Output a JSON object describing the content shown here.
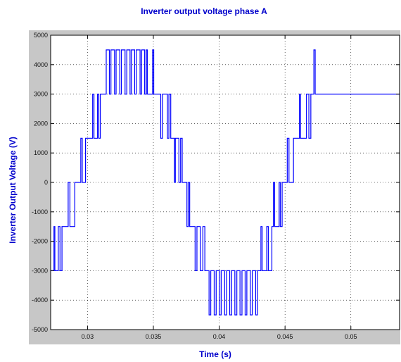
{
  "chart_data": {
    "type": "line",
    "title": "Inverter output voltage phase A",
    "xlabel": "Time (s)",
    "ylabel": "Inverter Output Voltage (V)",
    "xlim": [
      0.0272,
      0.0537
    ],
    "ylim": [
      -5000,
      5000
    ],
    "xticks": [
      0.03,
      0.035,
      0.04,
      0.045,
      0.05
    ],
    "xtick_labels": [
      "0.03",
      "0.035",
      "0.04",
      "0.045",
      "0.05"
    ],
    "yticks": [
      5000,
      4000,
      3000,
      2000,
      1000,
      0,
      -1000,
      -2000,
      -3000,
      -4000,
      -5000
    ],
    "ytick_labels": [
      "5000",
      "4000",
      "3000",
      "2000",
      "1000",
      "0",
      "-1000",
      "-2000",
      "-3000",
      "-4000",
      "-5000"
    ],
    "grid": true,
    "grid_style": "dotted",
    "series": [
      {
        "color": "#0000ff",
        "points": [
          [
            0.0272,
            -3000
          ],
          [
            0.02745,
            -3000
          ],
          [
            0.02745,
            -1500
          ],
          [
            0.02752,
            -1500
          ],
          [
            0.02752,
            -3000
          ],
          [
            0.02778,
            -3000
          ],
          [
            0.02778,
            -1500
          ],
          [
            0.02791,
            -1500
          ],
          [
            0.02791,
            -3000
          ],
          [
            0.02806,
            -3000
          ],
          [
            0.02806,
            -1500
          ],
          [
            0.02853,
            -1500
          ],
          [
            0.02853,
            0
          ],
          [
            0.02866,
            0
          ],
          [
            0.02866,
            -1500
          ],
          [
            0.02903,
            -1500
          ],
          [
            0.02903,
            0
          ],
          [
            0.02949,
            0
          ],
          [
            0.02949,
            1500
          ],
          [
            0.0296,
            1500
          ],
          [
            0.0296,
            0
          ],
          [
            0.02985,
            0
          ],
          [
            0.02985,
            1500
          ],
          [
            0.03039,
            1500
          ],
          [
            0.03039,
            3000
          ],
          [
            0.03049,
            3000
          ],
          [
            0.03049,
            1500
          ],
          [
            0.03076,
            1500
          ],
          [
            0.03076,
            3000
          ],
          [
            0.03086,
            3000
          ],
          [
            0.03086,
            1500
          ],
          [
            0.03097,
            1500
          ],
          [
            0.03097,
            3000
          ],
          [
            0.03142,
            3000
          ],
          [
            0.03142,
            4500
          ],
          [
            0.03166,
            4500
          ],
          [
            0.03166,
            3000
          ],
          [
            0.03178,
            3000
          ],
          [
            0.03178,
            4500
          ],
          [
            0.03205,
            4500
          ],
          [
            0.03205,
            3000
          ],
          [
            0.03217,
            3000
          ],
          [
            0.03217,
            4500
          ],
          [
            0.03245,
            4500
          ],
          [
            0.03245,
            3000
          ],
          [
            0.03257,
            3000
          ],
          [
            0.03257,
            4500
          ],
          [
            0.03285,
            4500
          ],
          [
            0.03285,
            3000
          ],
          [
            0.03298,
            3000
          ],
          [
            0.03298,
            4500
          ],
          [
            0.03323,
            4500
          ],
          [
            0.03323,
            3000
          ],
          [
            0.03333,
            3000
          ],
          [
            0.03333,
            4500
          ],
          [
            0.03358,
            4500
          ],
          [
            0.03358,
            3000
          ],
          [
            0.0337,
            3000
          ],
          [
            0.0337,
            4500
          ],
          [
            0.03399,
            4500
          ],
          [
            0.03399,
            3000
          ],
          [
            0.03411,
            3000
          ],
          [
            0.03411,
            4500
          ],
          [
            0.03434,
            4500
          ],
          [
            0.03434,
            3000
          ],
          [
            0.03446,
            3000
          ],
          [
            0.03446,
            4500
          ],
          [
            0.03454,
            4500
          ],
          [
            0.03454,
            3000
          ],
          [
            0.03494,
            3000
          ],
          [
            0.03494,
            4500
          ],
          [
            0.03503,
            4500
          ],
          [
            0.03503,
            3000
          ],
          [
            0.03556,
            3000
          ],
          [
            0.03556,
            1500
          ],
          [
            0.03569,
            1500
          ],
          [
            0.03569,
            3000
          ],
          [
            0.03607,
            3000
          ],
          [
            0.03607,
            1500
          ],
          [
            0.03618,
            1500
          ],
          [
            0.03618,
            3000
          ],
          [
            0.03632,
            3000
          ],
          [
            0.03632,
            1500
          ],
          [
            0.0366,
            1500
          ],
          [
            0.0366,
            0
          ],
          [
            0.03667,
            0
          ],
          [
            0.03667,
            1500
          ],
          [
            0.03694,
            1500
          ],
          [
            0.03694,
            0
          ],
          [
            0.03707,
            0
          ],
          [
            0.03707,
            1500
          ],
          [
            0.03719,
            1500
          ],
          [
            0.03719,
            0
          ],
          [
            0.03755,
            0
          ],
          [
            0.03755,
            -1500
          ],
          [
            0.03766,
            -1500
          ],
          [
            0.03766,
            0
          ],
          [
            0.03776,
            0
          ],
          [
            0.03776,
            -1500
          ],
          [
            0.03817,
            -1500
          ],
          [
            0.03817,
            -3000
          ],
          [
            0.03831,
            -3000
          ],
          [
            0.03831,
            -1500
          ],
          [
            0.03856,
            -1500
          ],
          [
            0.03856,
            -3000
          ],
          [
            0.03876,
            -3000
          ],
          [
            0.03876,
            -1500
          ],
          [
            0.03891,
            -1500
          ],
          [
            0.03891,
            -3000
          ],
          [
            0.03923,
            -3000
          ],
          [
            0.03923,
            -4500
          ],
          [
            0.03936,
            -4500
          ],
          [
            0.03936,
            -3000
          ],
          [
            0.03962,
            -3000
          ],
          [
            0.03962,
            -4500
          ],
          [
            0.03977,
            -4500
          ],
          [
            0.03977,
            -3000
          ],
          [
            0.04001,
            -3000
          ],
          [
            0.04001,
            -4500
          ],
          [
            0.04015,
            -4500
          ],
          [
            0.04015,
            -3000
          ],
          [
            0.04041,
            -3000
          ],
          [
            0.04041,
            -4500
          ],
          [
            0.04056,
            -4500
          ],
          [
            0.04056,
            -3000
          ],
          [
            0.0408,
            -3000
          ],
          [
            0.0408,
            -4500
          ],
          [
            0.04095,
            -4500
          ],
          [
            0.04095,
            -3000
          ],
          [
            0.04119,
            -3000
          ],
          [
            0.04119,
            -4500
          ],
          [
            0.04134,
            -4500
          ],
          [
            0.04134,
            -3000
          ],
          [
            0.04158,
            -3000
          ],
          [
            0.04158,
            -4500
          ],
          [
            0.04173,
            -4500
          ],
          [
            0.04173,
            -3000
          ],
          [
            0.04197,
            -3000
          ],
          [
            0.04197,
            -4500
          ],
          [
            0.0421,
            -4500
          ],
          [
            0.0421,
            -3000
          ],
          [
            0.04236,
            -3000
          ],
          [
            0.04236,
            -4500
          ],
          [
            0.04251,
            -4500
          ],
          [
            0.04251,
            -3000
          ],
          [
            0.04277,
            -3000
          ],
          [
            0.04277,
            -4500
          ],
          [
            0.0429,
            -4500
          ],
          [
            0.0429,
            -3000
          ],
          [
            0.04317,
            -3000
          ],
          [
            0.04317,
            -1500
          ],
          [
            0.04326,
            -1500
          ],
          [
            0.04326,
            -3000
          ],
          [
            0.04361,
            -3000
          ],
          [
            0.04361,
            -1500
          ],
          [
            0.04373,
            -1500
          ],
          [
            0.04373,
            -3000
          ],
          [
            0.044,
            -3000
          ],
          [
            0.044,
            -1500
          ],
          [
            0.04412,
            -1500
          ],
          [
            0.04412,
            0
          ],
          [
            0.04421,
            0
          ],
          [
            0.04421,
            -1500
          ],
          [
            0.04455,
            -1500
          ],
          [
            0.04455,
            0
          ],
          [
            0.04464,
            0
          ],
          [
            0.04464,
            -1500
          ],
          [
            0.04478,
            -1500
          ],
          [
            0.04478,
            0
          ],
          [
            0.04517,
            0
          ],
          [
            0.04517,
            1500
          ],
          [
            0.0453,
            1500
          ],
          [
            0.0453,
            0
          ],
          [
            0.04564,
            0
          ],
          [
            0.04564,
            1500
          ],
          [
            0.0461,
            1500
          ],
          [
            0.0461,
            3000
          ],
          [
            0.04617,
            3000
          ],
          [
            0.04617,
            1500
          ],
          [
            0.04663,
            1500
          ],
          [
            0.04663,
            3000
          ],
          [
            0.04681,
            3000
          ],
          [
            0.04681,
            1500
          ],
          [
            0.04696,
            1500
          ],
          [
            0.04696,
            3000
          ],
          [
            0.04719,
            3000
          ],
          [
            0.04719,
            4500
          ],
          [
            0.04729,
            4500
          ],
          [
            0.04729,
            3000
          ],
          [
            0.0537,
            3000
          ]
        ]
      }
    ]
  }
}
